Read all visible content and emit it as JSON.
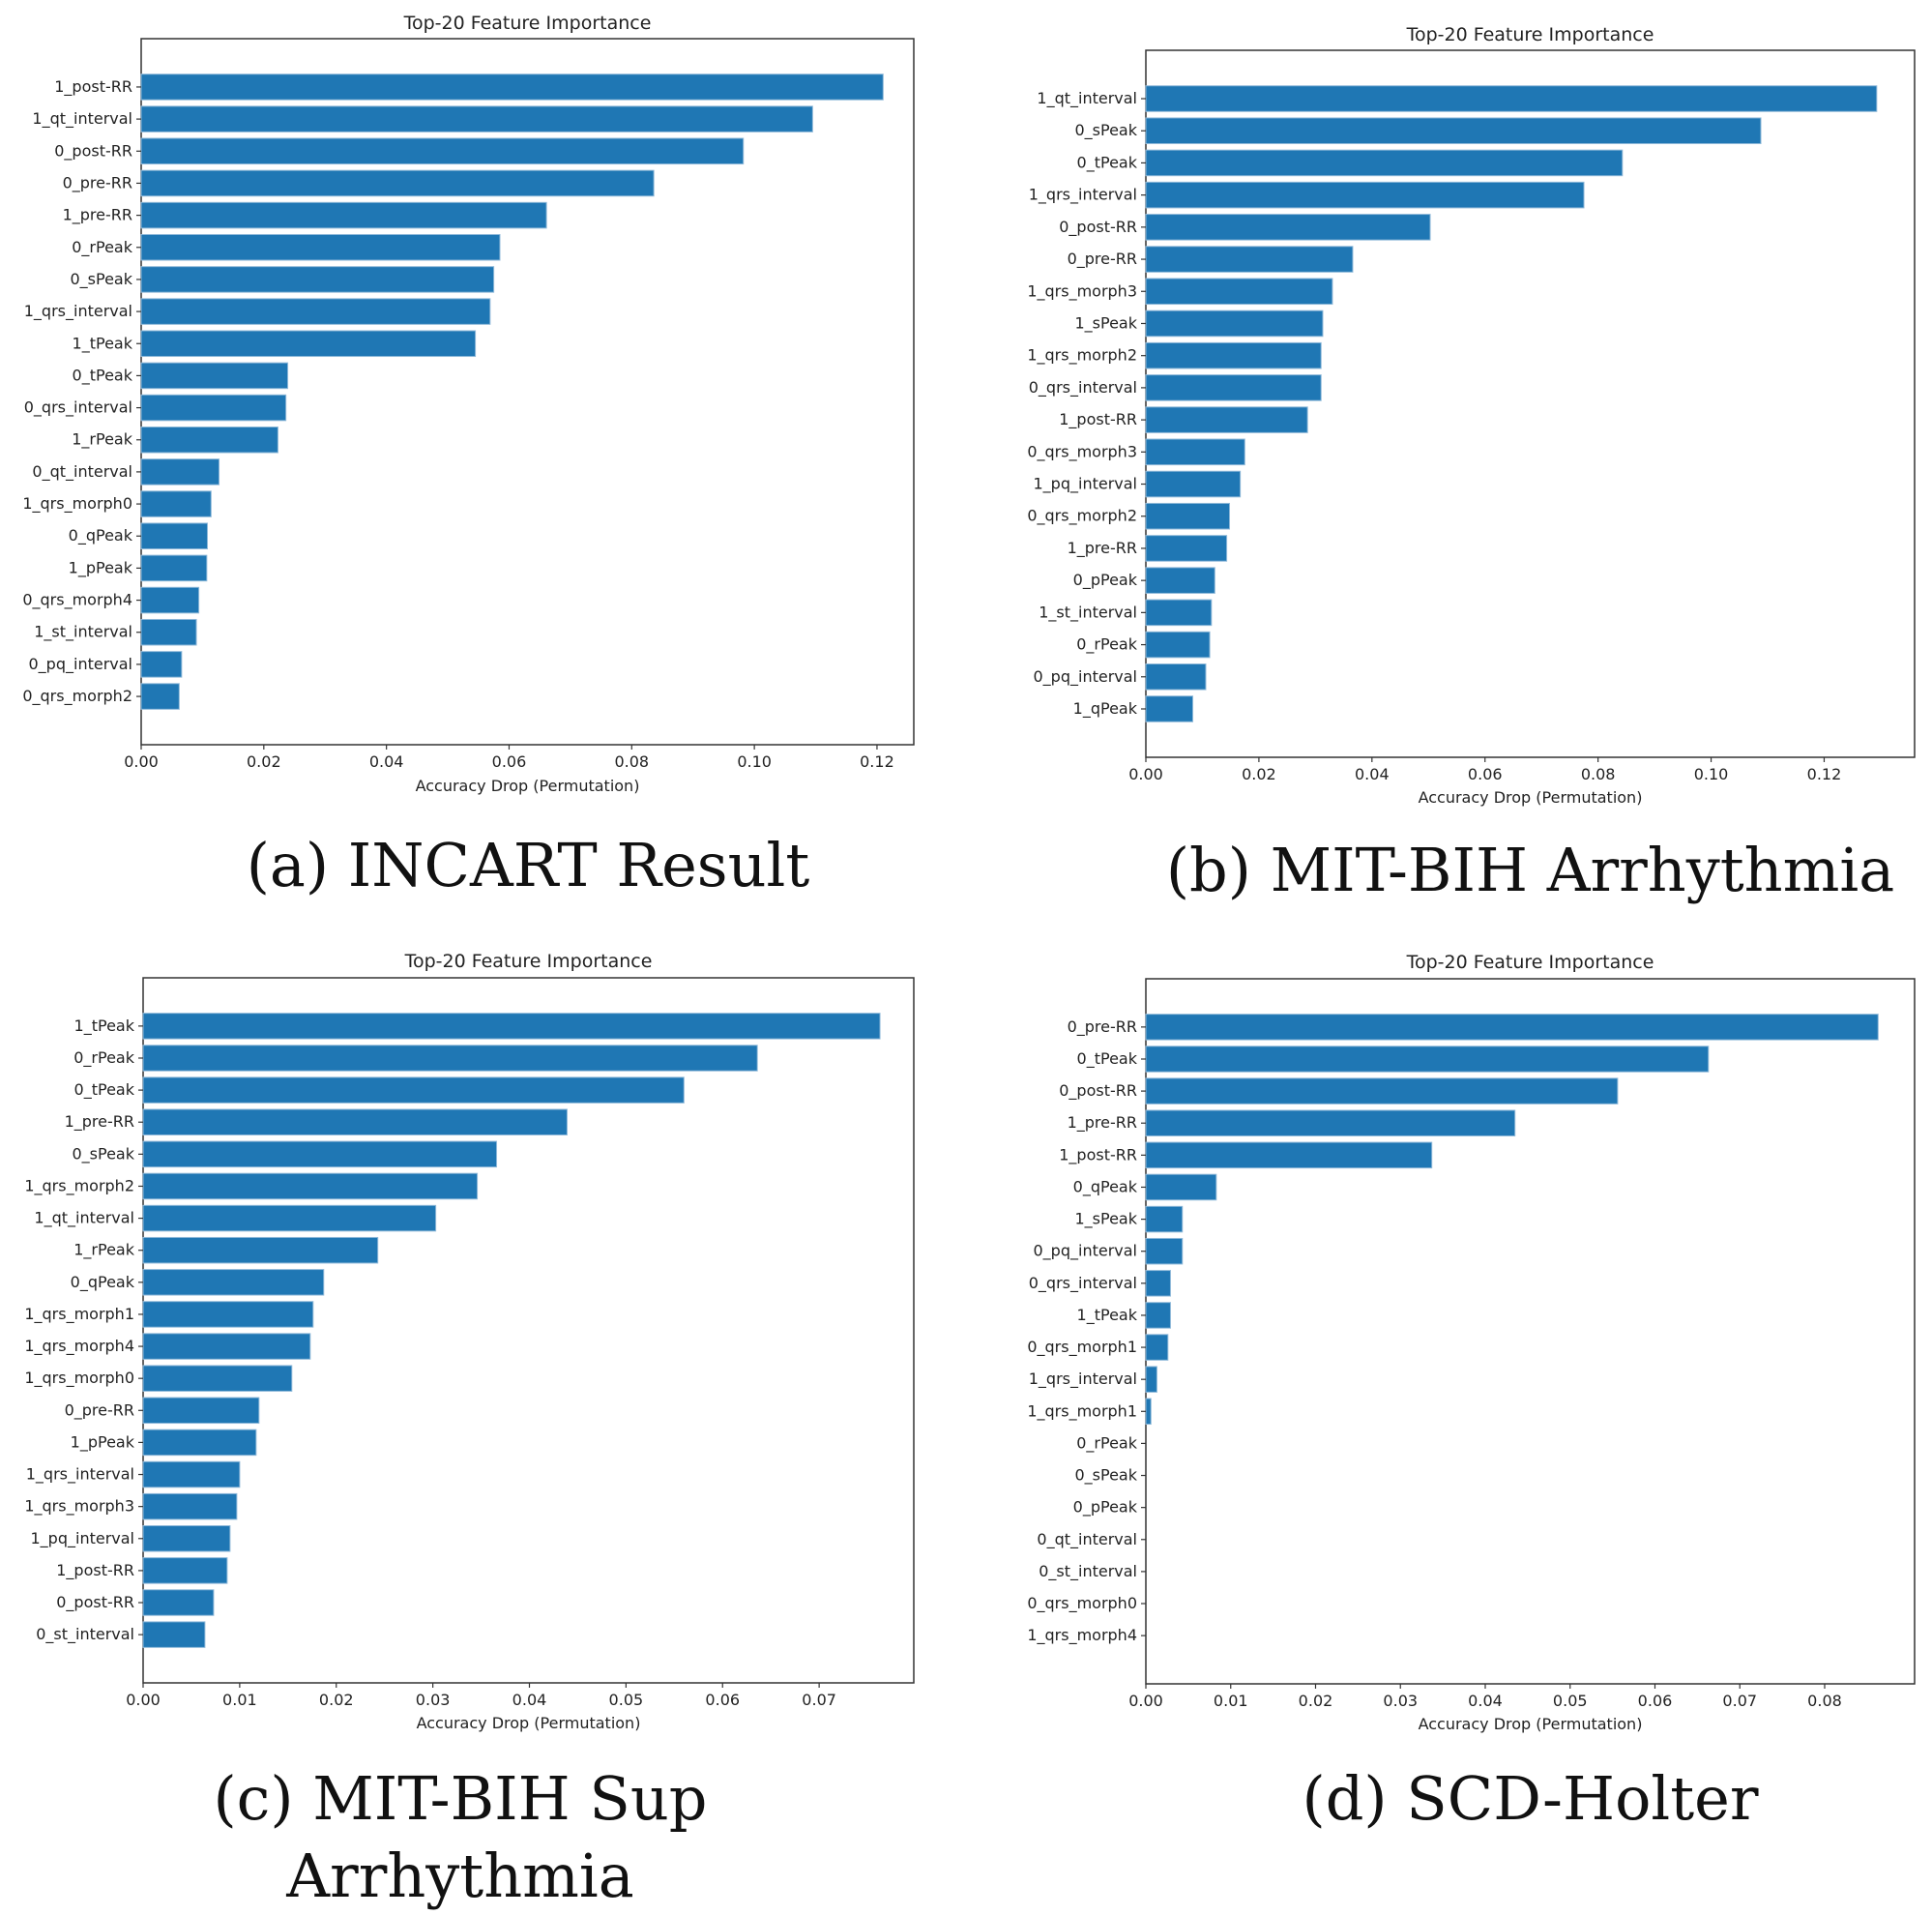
{
  "chart_data": [
    {
      "type": "bar",
      "orientation": "horizontal",
      "title": "Top-20 Feature Importance",
      "xlabel": "Accuracy Drop (Permutation)",
      "ylabel": "",
      "caption": "(a) INCART Result",
      "xlim": [
        0,
        0.126
      ],
      "xticks": [
        "0.00",
        "0.02",
        "0.04",
        "0.06",
        "0.08",
        "0.10",
        "0.12"
      ],
      "categories": [
        "1_post-RR",
        "1_qt_interval",
        "0_post-RR",
        "0_pre-RR",
        "1_pre-RR",
        "0_rPeak",
        "0_sPeak",
        "1_qrs_interval",
        "1_tPeak",
        "0_tPeak",
        "0_qrs_interval",
        "1_rPeak",
        "0_qt_interval",
        "1_qrs_morph0",
        "0_qPeak",
        "1_pPeak",
        "0_qrs_morph4",
        "1_st_interval",
        "0_pq_interval",
        "0_qrs_morph2"
      ],
      "values": [
        0.121,
        0.1095,
        0.0982,
        0.0836,
        0.0661,
        0.0585,
        0.0575,
        0.0569,
        0.0545,
        0.0239,
        0.0236,
        0.0223,
        0.0127,
        0.0114,
        0.0108,
        0.0107,
        0.0094,
        0.009,
        0.0066,
        0.0062
      ]
    },
    {
      "type": "bar",
      "orientation": "horizontal",
      "title": "Top-20 Feature Importance",
      "xlabel": "Accuracy Drop (Permutation)",
      "ylabel": "",
      "caption": "(b) MIT-BIH Arrhythmia",
      "xlim": [
        0,
        0.136
      ],
      "xticks": [
        "0.00",
        "0.02",
        "0.04",
        "0.06",
        "0.08",
        "0.10",
        "0.12"
      ],
      "categories": [
        "1_qt_interval",
        "0_sPeak",
        "0_tPeak",
        "1_qrs_interval",
        "0_post-RR",
        "0_pre-RR",
        "1_qrs_morph3",
        "1_sPeak",
        "1_qrs_morph2",
        "0_qrs_interval",
        "1_post-RR",
        "0_qrs_morph3",
        "1_pq_interval",
        "0_qrs_morph2",
        "1_pre-RR",
        "0_pPeak",
        "1_st_interval",
        "0_rPeak",
        "0_pq_interval",
        "1_qPeak"
      ],
      "values": [
        0.1293,
        0.1088,
        0.0843,
        0.0775,
        0.0503,
        0.0366,
        0.033,
        0.0313,
        0.031,
        0.031,
        0.0286,
        0.0175,
        0.0167,
        0.0148,
        0.0143,
        0.0122,
        0.0116,
        0.0113,
        0.0106,
        0.0083
      ]
    },
    {
      "type": "bar",
      "orientation": "horizontal",
      "title": "Top-20 Feature Importance",
      "xlabel": "Accuracy Drop (Permutation)",
      "ylabel": "",
      "caption": "(c) MIT-BIH Sup\nArrhythmia",
      "xlim": [
        0,
        0.0798
      ],
      "xticks": [
        "0.00",
        "0.01",
        "0.02",
        "0.03",
        "0.04",
        "0.05",
        "0.06",
        "0.07"
      ],
      "categories": [
        "1_tPeak",
        "0_rPeak",
        "0_tPeak",
        "1_pre-RR",
        "0_sPeak",
        "1_qrs_morph2",
        "1_qt_interval",
        "1_rPeak",
        "0_qPeak",
        "1_qrs_morph1",
        "1_qrs_morph4",
        "1_qrs_morph0",
        "0_pre-RR",
        "1_pPeak",
        "1_qrs_interval",
        "1_qrs_morph3",
        "1_pq_interval",
        "1_post-RR",
        "0_post-RR",
        "0_st_interval"
      ],
      "values": [
        0.0763,
        0.0636,
        0.056,
        0.0439,
        0.0366,
        0.0346,
        0.0303,
        0.0243,
        0.0187,
        0.0176,
        0.0173,
        0.0154,
        0.012,
        0.0117,
        0.01,
        0.0097,
        0.009,
        0.0087,
        0.0073,
        0.0064
      ]
    },
    {
      "type": "bar",
      "orientation": "horizontal",
      "title": "Top-20 Feature Importance",
      "xlabel": "Accuracy Drop (Permutation)",
      "ylabel": "",
      "caption": "(d) SCD-Holter",
      "xlim": [
        0,
        0.0906
      ],
      "xticks": [
        "0.00",
        "0.01",
        "0.02",
        "0.03",
        "0.04",
        "0.05",
        "0.06",
        "0.07",
        "0.08"
      ],
      "categories": [
        "0_pre-RR",
        "0_tPeak",
        "0_post-RR",
        "1_pre-RR",
        "1_post-RR",
        "0_qPeak",
        "1_sPeak",
        "0_pq_interval",
        "0_qrs_interval",
        "1_tPeak",
        "0_qrs_morph1",
        "1_qrs_interval",
        "1_qrs_morph1",
        "0_rPeak",
        "0_sPeak",
        "0_pPeak",
        "0_qt_interval",
        "0_st_interval",
        "0_qrs_morph0",
        "1_qrs_morph4"
      ],
      "values": [
        0.0863,
        0.0663,
        0.0556,
        0.0435,
        0.0337,
        0.0083,
        0.0043,
        0.0043,
        0.0029,
        0.0029,
        0.0026,
        0.0013,
        0.0006,
        0,
        0,
        0,
        0,
        0,
        0,
        0
      ]
    }
  ]
}
